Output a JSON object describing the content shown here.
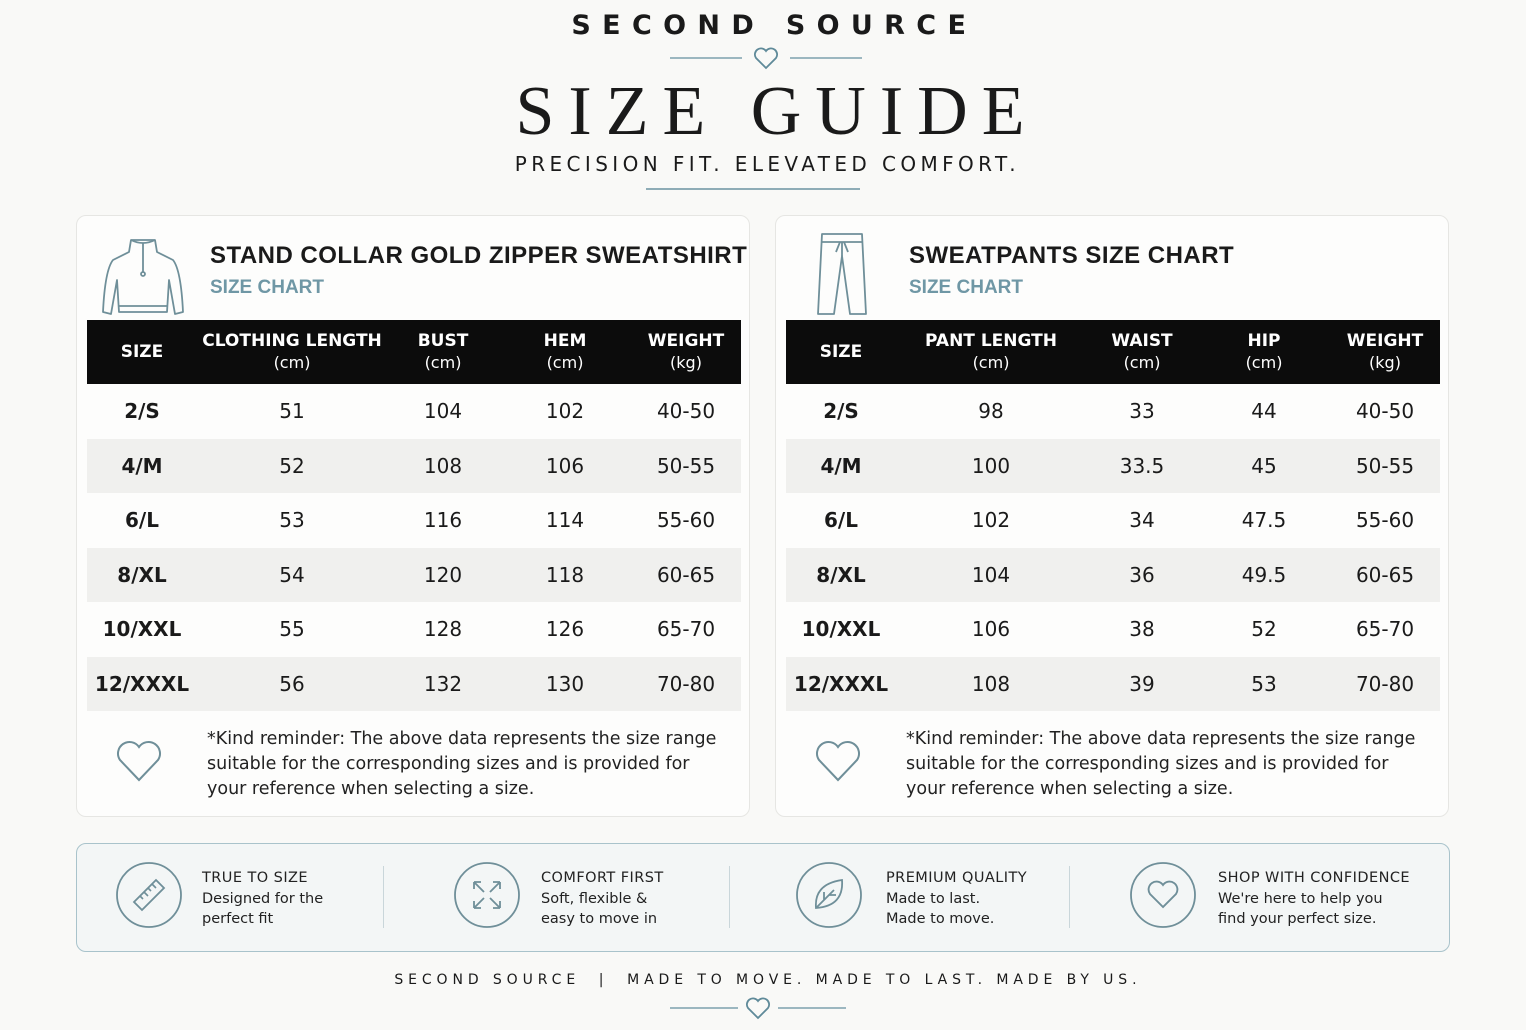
{
  "header": {
    "brand": "SECOND SOURCE",
    "title": "SIZE GUIDE",
    "tagline": "PRECISION FIT. ELEVATED COMFORT."
  },
  "charts": [
    {
      "title": "STAND COLLAR GOLD ZIPPER SWEATSHIRT",
      "subtitle": "SIZE CHART",
      "columns": [
        {
          "label": "SIZE"
        },
        {
          "label": "CLOTHING LENGTH",
          "unit": "(cm)"
        },
        {
          "label": "BUST",
          "unit": "(cm)"
        },
        {
          "label": "HEM",
          "unit": "(cm)"
        },
        {
          "label": "WEIGHT",
          "unit": "(kg)"
        }
      ],
      "rows": [
        [
          "2/S",
          "51",
          "104",
          "102",
          "40-50"
        ],
        [
          "4/M",
          "52",
          "108",
          "106",
          "50-55"
        ],
        [
          "6/L",
          "53",
          "116",
          "114",
          "55-60"
        ],
        [
          "8/XL",
          "54",
          "120",
          "118",
          "60-65"
        ],
        [
          "10/XXL",
          "55",
          "128",
          "126",
          "65-70"
        ],
        [
          "12/XXXL",
          "56",
          "132",
          "130",
          "70-80"
        ]
      ],
      "note": [
        "*Kind reminder: The above data represents the size range",
        "suitable for the corresponding sizes and is provided for",
        "your reference when selecting a size."
      ]
    },
    {
      "title": "SWEATPANTS SIZE CHART",
      "subtitle": "SIZE CHART",
      "columns": [
        {
          "label": "SIZE"
        },
        {
          "label": "PANT LENGTH",
          "unit": "(cm)"
        },
        {
          "label": "WAIST",
          "unit": "(cm)"
        },
        {
          "label": "HIP",
          "unit": "(cm)"
        },
        {
          "label": "WEIGHT",
          "unit": "(kg)"
        }
      ],
      "rows": [
        [
          "2/S",
          "98",
          "33",
          "44",
          "40-50"
        ],
        [
          "4/M",
          "100",
          "33.5",
          "45",
          "50-55"
        ],
        [
          "6/L",
          "102",
          "34",
          "47.5",
          "55-60"
        ],
        [
          "8/XL",
          "104",
          "36",
          "49.5",
          "60-65"
        ],
        [
          "10/XXL",
          "106",
          "38",
          "52",
          "65-70"
        ],
        [
          "12/XXXL",
          "108",
          "39",
          "53",
          "70-80"
        ]
      ],
      "note": [
        "*Kind reminder: The above data represents the size range",
        "suitable for the corresponding sizes and is provided for",
        "your reference when selecting a size."
      ]
    }
  ],
  "features": [
    {
      "title": "TRUE TO SIZE",
      "lines": [
        "Designed for the",
        "perfect fit"
      ]
    },
    {
      "title": "COMFORT FIRST",
      "lines": [
        "Soft, flexible &",
        "easy to move in"
      ]
    },
    {
      "title": "PREMIUM QUALITY",
      "lines": [
        "Made to last.",
        "Made to move."
      ]
    },
    {
      "title": "SHOP WITH CONFIDENCE",
      "lines": [
        "We're here to help you",
        "find your perfect size."
      ]
    }
  ],
  "footer": "SECOND SOURCE  |  MADE TO MOVE. MADE TO LAST. MADE BY US."
}
